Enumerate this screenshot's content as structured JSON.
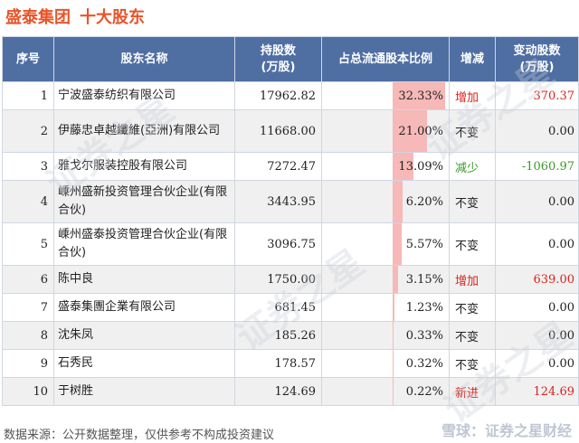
{
  "header": {
    "company": "盛泰集团",
    "subtitle": "十大股东"
  },
  "columns": [
    "序号",
    "股东名称",
    "持股数\n(万股)",
    "占总流通股本比例",
    "增减",
    "变动股数\n(万股)"
  ],
  "rows": [
    {
      "no": "1",
      "name": "宁波盛泰纺织有限公司",
      "holding": "17962.82",
      "ratio": "32.33%",
      "ratio_value": 32.33,
      "change": "增加",
      "change_type": "up",
      "delta": "370.37"
    },
    {
      "no": "2",
      "name": "伊藤忠卓越纖維(亞洲)有限公司",
      "holding": "11668.00",
      "ratio": "21.00%",
      "ratio_value": 21.0,
      "change": "不变",
      "change_type": "same",
      "delta": "0.00"
    },
    {
      "no": "3",
      "name": "雅戈尔服装控股有限公司",
      "holding": "7272.47",
      "ratio": "13.09%",
      "ratio_value": 13.09,
      "change": "减少",
      "change_type": "down",
      "delta": "-1060.97"
    },
    {
      "no": "4",
      "name": "嵊州盛新投资管理合伙企业(有限合伙)",
      "holding": "3443.95",
      "ratio": "6.20%",
      "ratio_value": 6.2,
      "change": "不变",
      "change_type": "same",
      "delta": "0.00"
    },
    {
      "no": "5",
      "name": "嵊州盛泰投资管理合伙企业(有限合伙)",
      "holding": "3096.75",
      "ratio": "5.57%",
      "ratio_value": 5.57,
      "change": "不变",
      "change_type": "same",
      "delta": "0.00"
    },
    {
      "no": "6",
      "name": "陈中良",
      "holding": "1750.00",
      "ratio": "3.15%",
      "ratio_value": 3.15,
      "change": "增加",
      "change_type": "up",
      "delta": "639.00"
    },
    {
      "no": "7",
      "name": "盛泰集團企業有限公司",
      "holding": "681.45",
      "ratio": "1.23%",
      "ratio_value": 1.23,
      "change": "不变",
      "change_type": "same",
      "delta": "0.00"
    },
    {
      "no": "8",
      "name": "沈朱凤",
      "holding": "185.26",
      "ratio": "0.33%",
      "ratio_value": 0.33,
      "change": "不变",
      "change_type": "same",
      "delta": "0.00"
    },
    {
      "no": "9",
      "name": "石秀民",
      "holding": "178.57",
      "ratio": "0.32%",
      "ratio_value": 0.32,
      "change": "不变",
      "change_type": "same",
      "delta": "0.00"
    },
    {
      "no": "10",
      "name": "于树胜",
      "holding": "124.69",
      "ratio": "0.22%",
      "ratio_value": 0.22,
      "change": "新进",
      "change_type": "up",
      "delta": "124.69"
    }
  ],
  "footer": {
    "source": "数据来源：公开数据整理，仅供参考不构成投资建议",
    "brand": "雪球：证券之星财经"
  },
  "watermark": "证券之星",
  "colors": {
    "title": "#e8542a",
    "header_bg": "#4f6fa3",
    "bar": "#f7b8b8",
    "up": "#d9231d",
    "down": "#3a9a2a"
  }
}
